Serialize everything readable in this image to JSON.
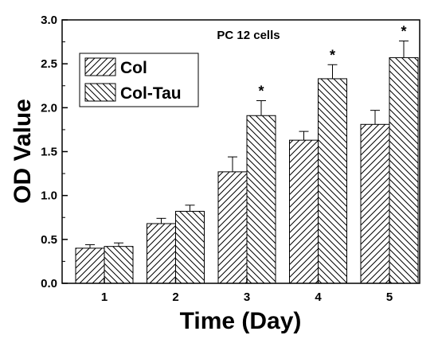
{
  "chart_data": {
    "type": "bar",
    "title": "PC 12 cells",
    "xlabel": "Time (Day)",
    "ylabel": "OD Value",
    "categories": [
      "1",
      "2",
      "3",
      "4",
      "5"
    ],
    "ylim": [
      0,
      3.0
    ],
    "yticks": [
      "0.0",
      "0.5",
      "1.0",
      "1.5",
      "2.0",
      "2.5",
      "3.0"
    ],
    "series": [
      {
        "name": "Col",
        "values": [
          0.4,
          0.68,
          1.27,
          1.63,
          1.81
        ],
        "errors": [
          0.04,
          0.06,
          0.17,
          0.1,
          0.16
        ],
        "hatch": "forward-diagonal"
      },
      {
        "name": "Col-Tau",
        "values": [
          0.42,
          0.82,
          1.91,
          2.33,
          2.57
        ],
        "errors": [
          0.04,
          0.07,
          0.17,
          0.16,
          0.19
        ],
        "hatch": "backward-diagonal"
      }
    ],
    "annotations": [
      {
        "category": "3",
        "series": "Col-Tau",
        "text": "*"
      },
      {
        "category": "4",
        "series": "Col-Tau",
        "text": "*"
      },
      {
        "category": "5",
        "series": "Col-Tau",
        "text": "*"
      }
    ],
    "legend_position": "top-left",
    "grid": false
  }
}
